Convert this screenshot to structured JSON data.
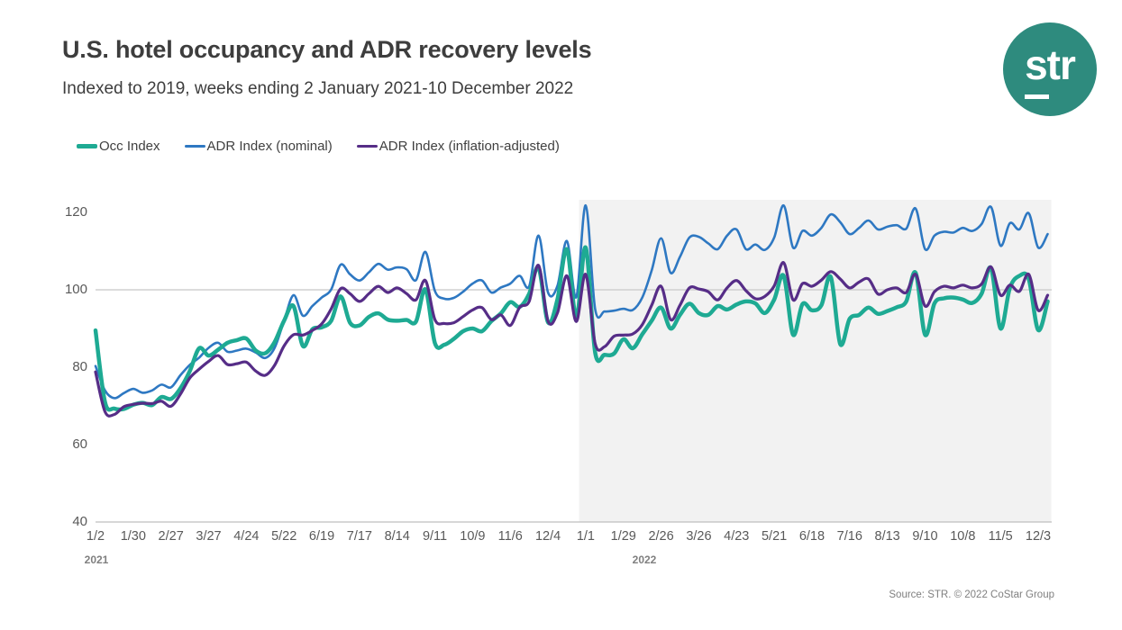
{
  "header": {
    "title": "U.S. hotel occupancy and ADR recovery levels",
    "subtitle": "Indexed to 2019, weeks ending 2 January 2021-10 December 2022"
  },
  "logo": {
    "text": "str",
    "bg_color": "#2e8b7e"
  },
  "legend": [
    {
      "label": "Occ Index"
    },
    {
      "label": "ADR Index (nominal)"
    },
    {
      "label": "ADR Index (inflation-adjusted)"
    }
  ],
  "footer": {
    "source": "Source: STR. © 2022 CoStar Group"
  },
  "chart_data": {
    "type": "line",
    "title": "U.S. hotel occupancy and ADR recovery levels",
    "subtitle": "Indexed to 2019, weeks ending 2 January 2021-10 December 2022",
    "x_unit": "weeks (weekly data, 2 Jan 2021 - 10 Dec 2022)",
    "ylim": [
      40,
      124
    ],
    "y_ticks": [
      120,
      100,
      80,
      60,
      40
    ],
    "gridline_at": 100,
    "grid": "horizontal line at 100 only",
    "legend_position": "top-left above plot",
    "x_tick_weeks": [
      0,
      4,
      8,
      12,
      16,
      20,
      24,
      28,
      32,
      36,
      40,
      44,
      48,
      52,
      56,
      60,
      64,
      68,
      72,
      76,
      80,
      84,
      88,
      92,
      96,
      100
    ],
    "x_tick_labels": [
      "1/2",
      "1/30",
      "2/27",
      "3/27",
      "4/24",
      "5/22",
      "6/19",
      "7/17",
      "8/14",
      "9/11",
      "10/9",
      "11/6",
      "12/4",
      "1/1",
      "1/29",
      "2/26",
      "3/26",
      "4/23",
      "5/21",
      "6/18",
      "7/16",
      "8/13",
      "9/10",
      "10/8",
      "11/5",
      "12/3"
    ],
    "year_labels": [
      {
        "label": "2021"
      },
      {
        "label": "2022"
      }
    ],
    "shaded_region": {
      "from_week": 51.3,
      "to_week": 101.4,
      "color": "#f2f2f2",
      "meaning": "calendar year 2022"
    },
    "colors": {
      "grid": "#c8c8c8",
      "axis": "#bfbfbf",
      "tick_text": "#595959"
    },
    "series": [
      {
        "name": "Occ Index",
        "color": "#1eaa93",
        "width": 4.5,
        "values": [
          89.5,
          71.0,
          69.3,
          69.2,
          70.3,
          70.8,
          70.2,
          72.3,
          71.8,
          74.5,
          79.0,
          84.9,
          83.0,
          84.5,
          86.3,
          87.0,
          87.4,
          84.3,
          83.6,
          86.5,
          92.0,
          95.8,
          85.5,
          89.8,
          90.3,
          92.0,
          98.3,
          91.5,
          90.8,
          93.0,
          93.9,
          92.3,
          92.0,
          92.2,
          91.8,
          100.1,
          86.2,
          85.8,
          87.3,
          89.3,
          90.0,
          89.3,
          91.9,
          93.9,
          96.8,
          95.6,
          99.0,
          105.7,
          91.6,
          97.5,
          110.5,
          92.8,
          110.9,
          83.8,
          83.2,
          83.5,
          87.2,
          84.9,
          88.5,
          92.0,
          95.4,
          90.0,
          93.5,
          96.4,
          94.0,
          93.5,
          95.8,
          94.9,
          96.2,
          97.0,
          96.5,
          94.0,
          97.5,
          103.6,
          88.4,
          96.3,
          94.7,
          96.0,
          103.3,
          86.0,
          92.5,
          93.5,
          95.4,
          93.8,
          94.5,
          95.5,
          97.0,
          104.4,
          88.4,
          96.5,
          97.8,
          98.0,
          97.5,
          96.6,
          99.0,
          105.6,
          90.0,
          100.5,
          103.6,
          102.8,
          89.6,
          97.0
        ]
      },
      {
        "name": "ADR Index (nominal)",
        "color": "#2e78c2",
        "width": 2.6,
        "values": [
          80.3,
          74.0,
          72.0,
          73.3,
          74.4,
          73.4,
          74.0,
          75.5,
          74.8,
          77.9,
          80.6,
          82.5,
          85.0,
          86.3,
          84.0,
          84.3,
          84.8,
          83.8,
          82.4,
          85.0,
          92.0,
          98.6,
          93.3,
          95.8,
          98.0,
          100.1,
          106.5,
          104.0,
          102.4,
          104.5,
          106.7,
          105.2,
          105.8,
          105.3,
          102.5,
          109.8,
          99.7,
          97.7,
          97.9,
          99.5,
          101.6,
          102.4,
          99.3,
          100.6,
          101.6,
          103.6,
          100.9,
          114.0,
          99.3,
          101.0,
          112.6,
          98.1,
          121.8,
          95.0,
          94.4,
          94.6,
          95.1,
          94.8,
          98.0,
          105.0,
          113.3,
          104.4,
          108.5,
          113.5,
          113.7,
          112.0,
          110.5,
          114.0,
          115.6,
          110.5,
          111.7,
          110.3,
          113.5,
          121.8,
          110.9,
          115.2,
          114.0,
          116.0,
          119.5,
          117.5,
          114.4,
          116.0,
          117.9,
          115.6,
          116.3,
          116.7,
          115.8,
          121.0,
          110.5,
          114.0,
          115.0,
          114.8,
          116.0,
          115.2,
          117.0,
          121.4,
          111.4,
          117.2,
          115.6,
          119.8,
          110.9,
          114.4
        ]
      },
      {
        "name": "ADR Index (inflation-adjusted)",
        "color": "#562d87",
        "width": 3.2,
        "values": [
          78.8,
          68.5,
          67.8,
          69.8,
          70.4,
          70.7,
          70.6,
          71.2,
          69.9,
          73.0,
          77.2,
          79.5,
          81.5,
          83.0,
          80.7,
          80.9,
          81.3,
          79.0,
          77.9,
          80.5,
          85.5,
          88.4,
          88.3,
          89.5,
          91.2,
          95.1,
          100.3,
          99.0,
          97.0,
          99.0,
          100.9,
          99.3,
          100.5,
          99.0,
          97.4,
          102.4,
          92.3,
          91.3,
          91.5,
          93.1,
          94.8,
          95.4,
          92.3,
          93.5,
          90.8,
          95.5,
          97.0,
          106.3,
          91.9,
          94.0,
          103.6,
          91.8,
          104.0,
          86.1,
          85.3,
          88.0,
          88.3,
          88.6,
          91.0,
          96.0,
          100.9,
          92.3,
          96.0,
          100.5,
          100.2,
          99.5,
          97.4,
          100.5,
          102.4,
          99.8,
          97.7,
          98.3,
          101.0,
          107.0,
          97.4,
          101.6,
          100.9,
          102.5,
          104.7,
          102.8,
          100.5,
          102.0,
          102.8,
          98.9,
          100.0,
          100.5,
          99.3,
          104.0,
          95.8,
          99.5,
          100.9,
          100.5,
          101.2,
          100.5,
          101.5,
          105.9,
          98.6,
          101.2,
          99.6,
          104.0,
          94.7,
          98.6
        ]
      }
    ]
  }
}
